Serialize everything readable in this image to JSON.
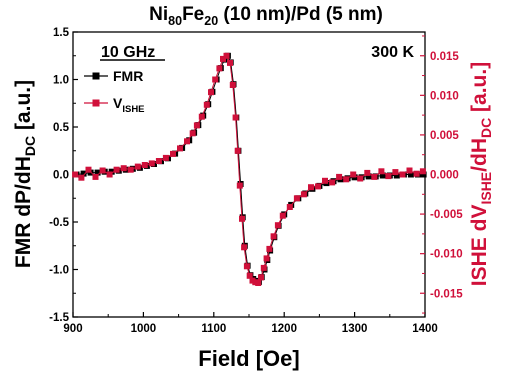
{
  "chart_data": {
    "type": "line",
    "title": "Ni80Fe20 (10 nm)/Pd (5 nm)",
    "title_parts": {
      "a": "Ni",
      "a_sub": "80",
      "b": "Fe",
      "b_sub": "20",
      "c": " (10 nm)/Pd (5 nm)"
    },
    "xlabel": "Field [Oe]",
    "ylabel_left": {
      "main": "FMR dP/dH",
      "sub": "DC",
      "unit": " [a.u.]"
    },
    "ylabel_right": {
      "pre": "ISHE dV",
      "sub1": "ISHE",
      "mid": "/dH",
      "sub2": "DC",
      "unit": " [a.u.]"
    },
    "xlim": [
      900,
      1400
    ],
    "ylim_left": [
      -1.5,
      1.5
    ],
    "ylim_right": [
      -0.018,
      0.018
    ],
    "xticks": [
      "900",
      "1000",
      "1100",
      "1200",
      "1300",
      "1400"
    ],
    "yticks_left": [
      "-1.5",
      "-1.0",
      "-0.5",
      "0.0",
      "0.5",
      "1.0",
      "1.5"
    ],
    "yticks_right": [
      "-0.015",
      "-0.010",
      "-0.005",
      "0.000",
      "0.005",
      "0.010",
      "0.015"
    ],
    "annotations": {
      "frequency": "10 GHz",
      "temperature": "300 K"
    },
    "legend": [
      {
        "name": "FMR",
        "color": "#000000"
      },
      {
        "name": "V",
        "sub": "ISHE",
        "color": "#d0103a"
      }
    ],
    "series": [
      {
        "name": "FMR",
        "color": "#000000",
        "x": [
          905,
          915,
          925,
          935,
          945,
          955,
          965,
          975,
          985,
          995,
          1005,
          1015,
          1025,
          1035,
          1045,
          1055,
          1065,
          1072,
          1078,
          1085,
          1092,
          1098,
          1104,
          1110,
          1115,
          1120,
          1124,
          1128,
          1132,
          1135,
          1138,
          1141,
          1144,
          1148,
          1152,
          1156,
          1160,
          1164,
          1168,
          1172,
          1176,
          1180,
          1186,
          1192,
          1200,
          1210,
          1220,
          1230,
          1240,
          1250,
          1260,
          1270,
          1280,
          1290,
          1300,
          1310,
          1320,
          1330,
          1340,
          1350,
          1360,
          1370,
          1380,
          1390,
          1398
        ],
        "y": [
          0.0,
          0.01,
          0.02,
          0.02,
          0.03,
          0.03,
          0.04,
          0.05,
          0.06,
          0.07,
          0.09,
          0.11,
          0.14,
          0.17,
          0.22,
          0.28,
          0.36,
          0.44,
          0.52,
          0.62,
          0.74,
          0.87,
          1.0,
          1.12,
          1.21,
          1.25,
          1.18,
          0.95,
          0.6,
          0.25,
          -0.1,
          -0.45,
          -0.75,
          -0.96,
          -1.06,
          -1.1,
          -1.12,
          -1.13,
          -1.08,
          -1.0,
          -0.9,
          -0.8,
          -0.66,
          -0.54,
          -0.42,
          -0.32,
          -0.25,
          -0.2,
          -0.15,
          -0.12,
          -0.09,
          -0.07,
          -0.05,
          -0.04,
          -0.03,
          -0.03,
          -0.02,
          -0.02,
          -0.01,
          -0.01,
          -0.01,
          0.0,
          0.0,
          0.0,
          0.0
        ]
      },
      {
        "name": "VISHE",
        "color": "#d0103a",
        "x": [
          903,
          912,
          922,
          932,
          942,
          952,
          962,
          972,
          982,
          992,
          1002,
          1012,
          1022,
          1032,
          1042,
          1052,
          1062,
          1070,
          1076,
          1083,
          1090,
          1096,
          1102,
          1108,
          1113,
          1118,
          1123,
          1127,
          1131,
          1134,
          1137,
          1140,
          1143,
          1147,
          1151,
          1155,
          1159,
          1163,
          1167,
          1171,
          1175,
          1179,
          1185,
          1191,
          1198,
          1208,
          1218,
          1228,
          1238,
          1248,
          1258,
          1268,
          1278,
          1288,
          1298,
          1308,
          1318,
          1328,
          1338,
          1348,
          1358,
          1368,
          1378,
          1388,
          1397
        ],
        "y": [
          0.0,
          -0.0004,
          0.0006,
          -0.0003,
          0.0005,
          0.0,
          0.0006,
          0.0008,
          0.0006,
          0.001,
          0.0012,
          0.0014,
          0.0017,
          0.0021,
          0.0026,
          0.0033,
          0.0042,
          0.0052,
          0.0062,
          0.0073,
          0.0088,
          0.0104,
          0.012,
          0.0134,
          0.0146,
          0.015,
          0.0141,
          0.0113,
          0.0072,
          0.003,
          -0.0014,
          -0.0056,
          -0.0092,
          -0.0116,
          -0.0128,
          -0.0134,
          -0.0136,
          -0.0137,
          -0.013,
          -0.0118,
          -0.0106,
          -0.0094,
          -0.0078,
          -0.0064,
          -0.0052,
          -0.0041,
          -0.003,
          -0.0025,
          -0.0016,
          -0.0015,
          -0.0008,
          -0.001,
          -0.0003,
          -0.0006,
          0.0,
          -0.0005,
          0.0002,
          -0.0003,
          0.0004,
          -0.0002,
          0.0003,
          0.0,
          0.0005,
          0.0001,
          0.0004
        ]
      }
    ],
    "grid": false,
    "legend_placement": "top-left",
    "colors": {
      "left_axis": "#000000",
      "right_axis": "#d0103a"
    }
  }
}
